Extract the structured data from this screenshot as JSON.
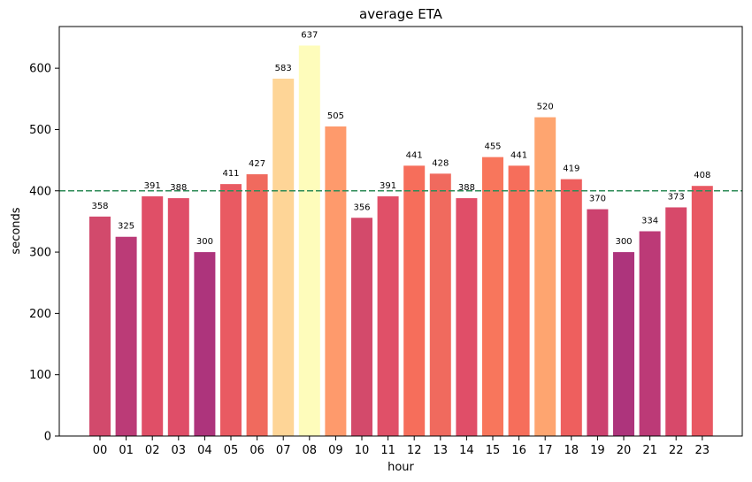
{
  "chart_data": {
    "type": "bar",
    "title": "average ETA",
    "xlabel": "hour",
    "ylabel": "seconds",
    "categories": [
      "00",
      "01",
      "02",
      "03",
      "04",
      "05",
      "06",
      "07",
      "08",
      "09",
      "10",
      "11",
      "12",
      "13",
      "14",
      "15",
      "16",
      "17",
      "18",
      "19",
      "20",
      "21",
      "22",
      "23"
    ],
    "values": [
      358,
      325,
      391,
      388,
      300,
      411,
      427,
      583,
      637,
      505,
      356,
      391,
      441,
      428,
      388,
      455,
      441,
      520,
      419,
      370,
      300,
      334,
      373,
      408
    ],
    "data_labels": [
      "358",
      "325",
      "391",
      "388",
      "300",
      "411",
      "427",
      "583",
      "637",
      "505",
      "356",
      "391",
      "441",
      "428",
      "388",
      "455",
      "441",
      "520",
      "419",
      "370",
      "300",
      "334",
      "373",
      "408"
    ],
    "ylim": [
      0,
      668
    ],
    "yticks": [
      0,
      100,
      200,
      300,
      400,
      500,
      600
    ],
    "reference_line": {
      "value": 400,
      "style": "dashed",
      "color": "#2e8b57"
    },
    "colors": [
      "#d24a6c",
      "#bb3b77",
      "#e04f67",
      "#df4e68",
      "#ad347c",
      "#e95a62",
      "#f06a5e",
      "#fed597",
      "#fefcbb",
      "#fe9a6c",
      "#d34a6b",
      "#e05068",
      "#f66e5b",
      "#f06a5e",
      "#e04e68",
      "#f8765c",
      "#f66e5b",
      "#fea570",
      "#ee5f5e",
      "#cc426f",
      "#ad347c",
      "#bc3a77",
      "#d7496a",
      "#e85862"
    ],
    "grid": false,
    "legend": "none"
  }
}
